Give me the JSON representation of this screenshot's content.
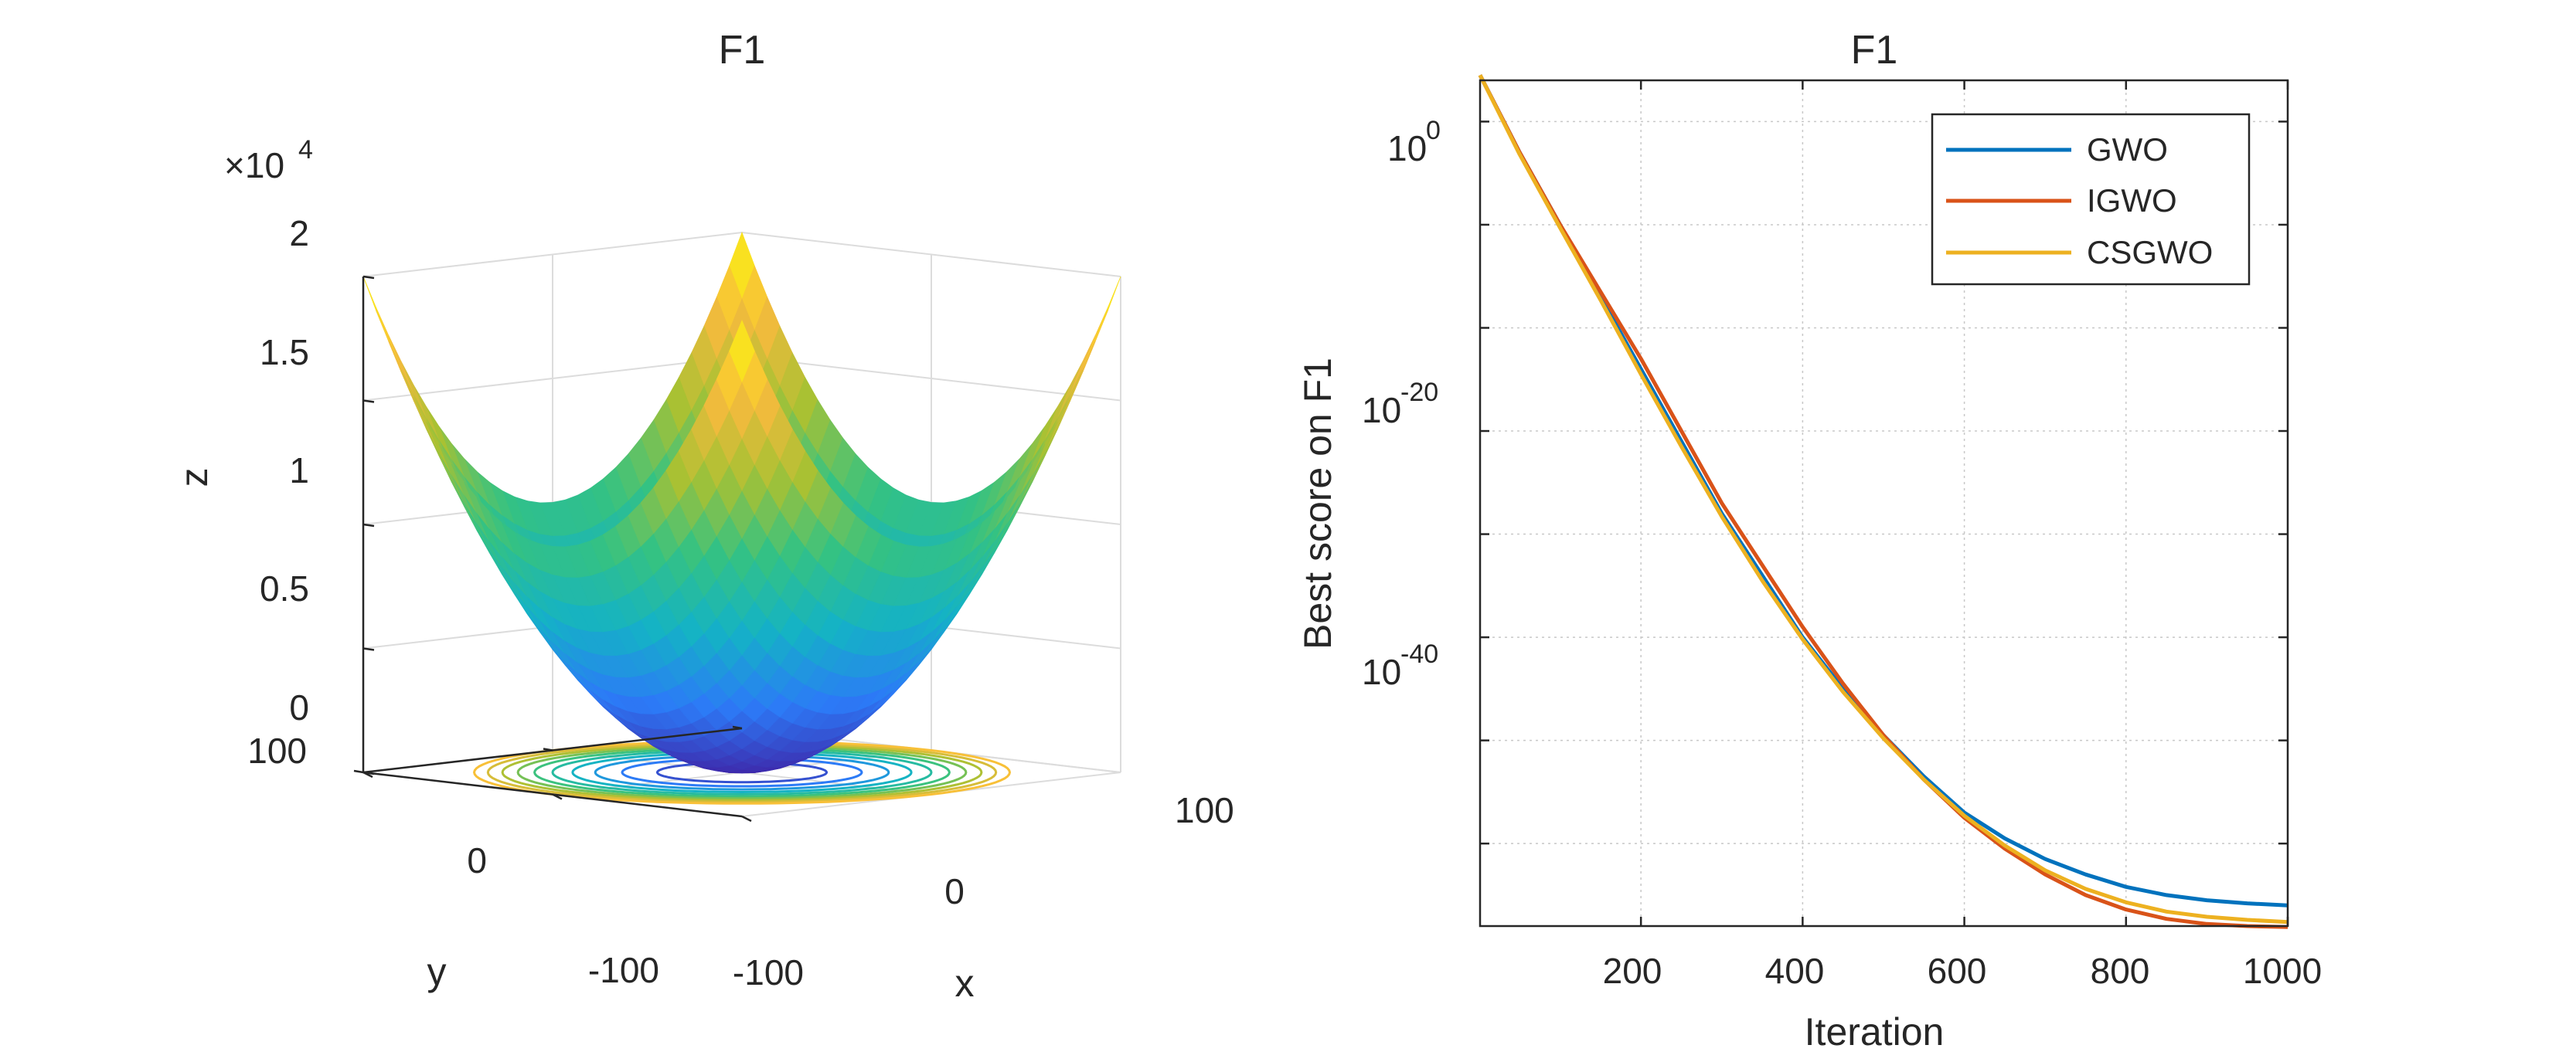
{
  "chart_data": [
    {
      "type": "surface3d",
      "title": "F1",
      "function": "z = x^2 + y^2",
      "xlabel": "x",
      "ylabel": "y",
      "zlabel": "z",
      "xlim": [
        -100,
        100
      ],
      "ylim": [
        -100,
        100
      ],
      "zlim": [
        0,
        20000
      ],
      "x_ticks": [
        "-100",
        "0",
        "100"
      ],
      "y_ticks": [
        "-100",
        "0",
        "100"
      ],
      "z_ticks": [
        "0",
        "0.5",
        "1",
        "1.5",
        "2"
      ],
      "z_exponent_base": "×10",
      "z_exponent_power": "4",
      "contour_levels": [
        1000,
        2000,
        3000,
        4000,
        5000,
        6000,
        7000,
        8000,
        9000,
        10000
      ],
      "grid": true,
      "colormap": [
        "#3e26a8",
        "#2c7af7",
        "#14b2c6",
        "#34c283",
        "#a8c133",
        "#f8ba3d",
        "#f9fb0e"
      ]
    },
    {
      "type": "line",
      "title": "F1",
      "xlabel": "Iteration",
      "ylabel": "Best score on F1",
      "xlim": [
        1,
        1000
      ],
      "ylim_log10": [
        -78,
        4
      ],
      "yscale": "log",
      "x_ticks": [
        "200",
        "400",
        "600",
        "800",
        "1000"
      ],
      "y_tick_base": "10",
      "y_tick_exponents": [
        "0",
        "-20",
        "-40"
      ],
      "grid": true,
      "legend_position": "top-right",
      "series": [
        {
          "name": "GWO",
          "color": "#0072bd",
          "x": [
            1,
            50,
            100,
            150,
            200,
            250,
            300,
            350,
            400,
            450,
            500,
            550,
            600,
            650,
            700,
            750,
            800,
            850,
            900,
            950,
            1000
          ],
          "log10_y": [
            4.5,
            -3,
            -10,
            -17,
            -24,
            -31,
            -38,
            -44,
            -50,
            -55,
            -59.5,
            -63.5,
            -67,
            -69.5,
            -71.5,
            -73,
            -74.2,
            -75,
            -75.5,
            -75.8,
            -76
          ]
        },
        {
          "name": "IGWO",
          "color": "#d95319",
          "x": [
            1,
            50,
            100,
            150,
            200,
            250,
            300,
            350,
            400,
            450,
            500,
            550,
            600,
            650,
            700,
            750,
            800,
            850,
            900,
            950,
            1000
          ],
          "log10_y": [
            4.5,
            -3,
            -10,
            -16.5,
            -23,
            -30,
            -37,
            -43,
            -49,
            -54.5,
            -59.5,
            -63.8,
            -67.5,
            -70.5,
            -73,
            -75,
            -76.4,
            -77.3,
            -77.8,
            -78,
            -78.1
          ]
        },
        {
          "name": "CSGWO",
          "color": "#edb120",
          "x": [
            1,
            50,
            100,
            150,
            200,
            250,
            300,
            350,
            400,
            450,
            500,
            550,
            600,
            650,
            700,
            750,
            800,
            850,
            900,
            950,
            1000
          ],
          "log10_y": [
            4.5,
            -3.2,
            -10.3,
            -17.3,
            -24.5,
            -31.5,
            -38.3,
            -44.5,
            -50.2,
            -55.3,
            -59.8,
            -63.8,
            -67.3,
            -70.2,
            -72.6,
            -74.4,
            -75.7,
            -76.6,
            -77.1,
            -77.4,
            -77.6
          ]
        }
      ]
    }
  ]
}
